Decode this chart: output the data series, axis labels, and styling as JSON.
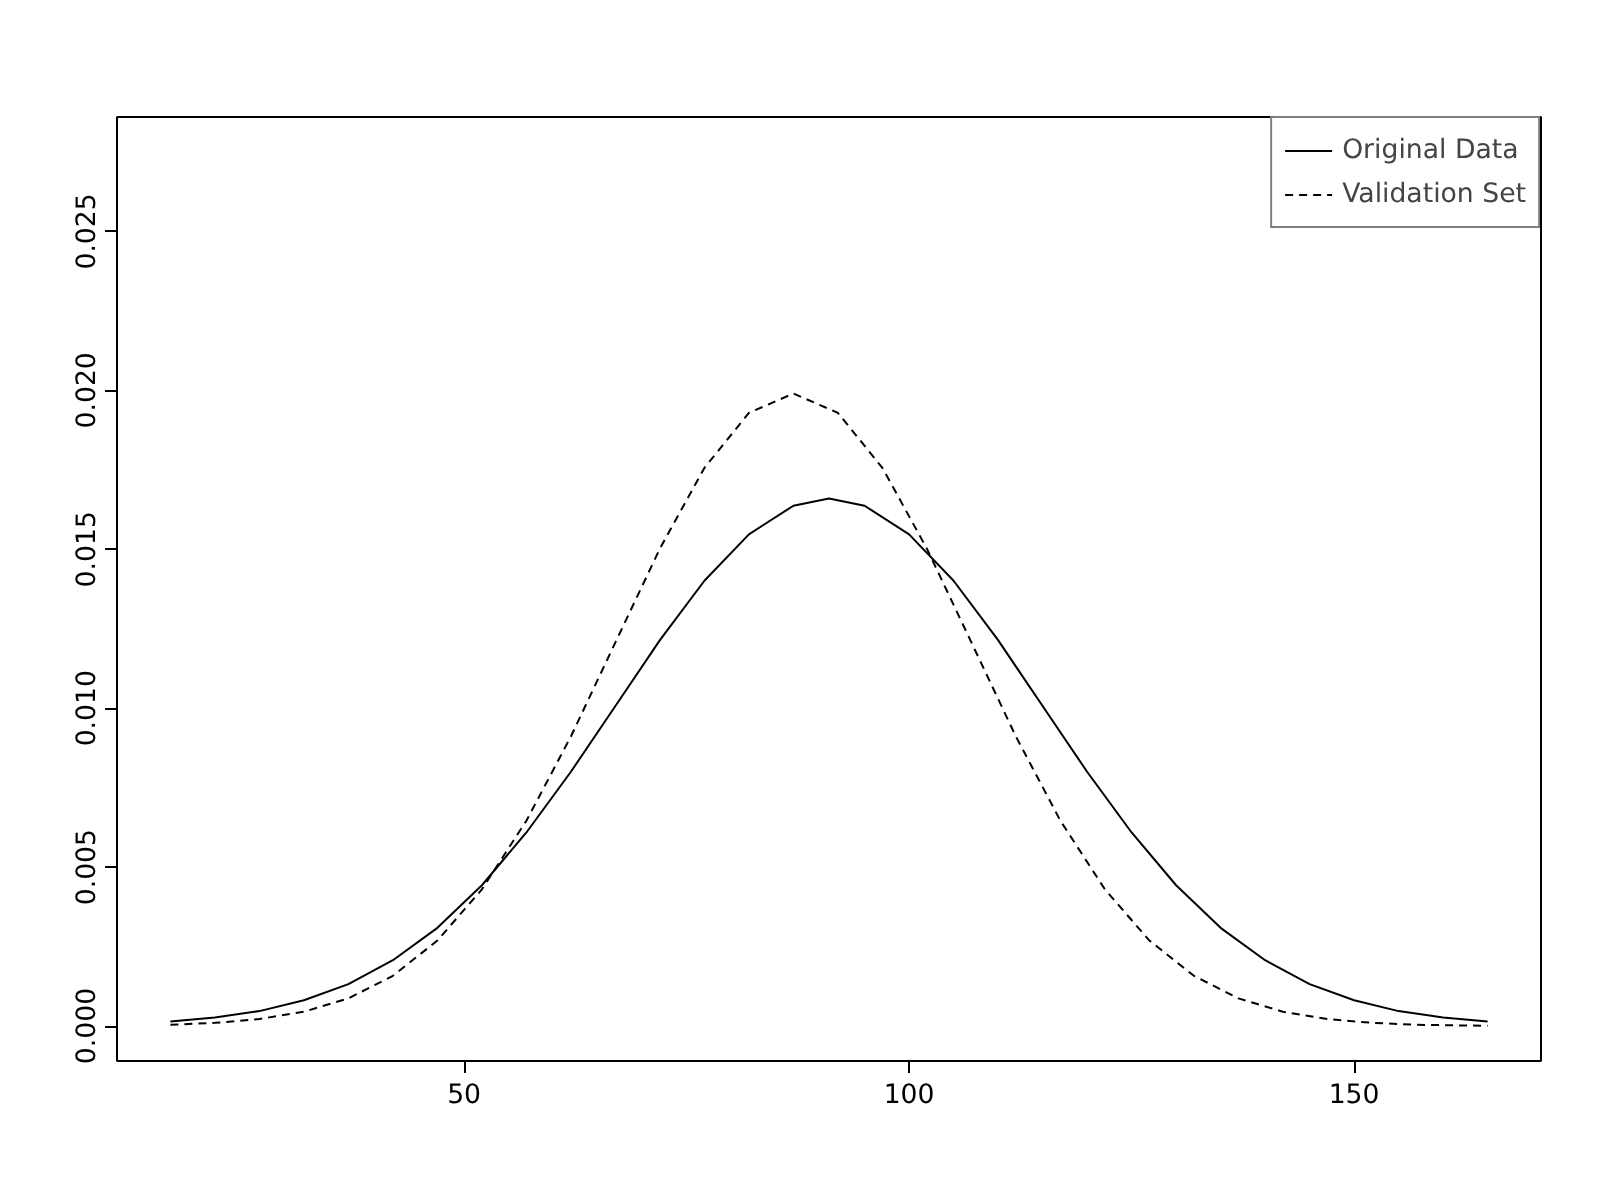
{
  "chart_data": {
    "type": "line",
    "legend": "top right",
    "grid": false,
    "marker": "none",
    "xlim": [
      11,
      171
    ],
    "ylim": [
      -0.0011,
      0.0286
    ],
    "xticks": [
      50,
      100,
      150
    ],
    "yticks": [
      {
        "value": 0,
        "label": "0.000"
      },
      {
        "value": 0.005,
        "label": "0.005"
      },
      {
        "value": 0.01,
        "label": "0.010"
      },
      {
        "value": 0.015,
        "label": "0.015"
      },
      {
        "value": 0.02,
        "label": "0.020"
      },
      {
        "value": 0.025,
        "label": "0.025"
      }
    ],
    "series": [
      {
        "name": "Original Data",
        "color": "#000000",
        "line_style": "solid",
        "x": [
          17,
          22,
          27,
          32,
          37,
          42,
          47,
          52,
          57,
          62,
          67,
          72,
          77,
          82,
          87,
          91,
          95,
          100,
          105,
          110,
          115,
          120,
          125,
          130,
          135,
          140,
          145,
          150,
          155,
          160,
          165
        ],
        "values": [
          0.00014,
          0.00027,
          0.00047,
          0.00081,
          0.00132,
          0.00207,
          0.00309,
          0.00443,
          0.00609,
          0.008,
          0.01007,
          0.01214,
          0.01401,
          0.01547,
          0.01637,
          0.0166,
          0.01637,
          0.01547,
          0.01401,
          0.01214,
          0.01007,
          0.008,
          0.00609,
          0.00443,
          0.00309,
          0.00207,
          0.00132,
          0.00081,
          0.00047,
          0.00027,
          0.00014
        ]
      },
      {
        "name": "Validation Set",
        "color": "#000000",
        "line_style": "dashed",
        "x": [
          17,
          22,
          27,
          32,
          37,
          42,
          47,
          52,
          57,
          62,
          67,
          72,
          77,
          82,
          87,
          92,
          97,
          102,
          107,
          112,
          117,
          122,
          127,
          132,
          137,
          142,
          147,
          152,
          157,
          162,
          165
        ],
        "values": [
          4e-05,
          0.0001,
          0.00022,
          0.00045,
          0.00087,
          0.00158,
          0.00269,
          0.0043,
          0.00646,
          0.00911,
          0.01207,
          0.01502,
          0.01756,
          0.01929,
          0.0199,
          0.01929,
          0.01756,
          0.01502,
          0.01207,
          0.00911,
          0.00646,
          0.0043,
          0.00269,
          0.00158,
          0.00087,
          0.00045,
          0.00022,
          0.0001,
          4e-05,
          2e-05,
          1e-05
        ]
      }
    ]
  }
}
